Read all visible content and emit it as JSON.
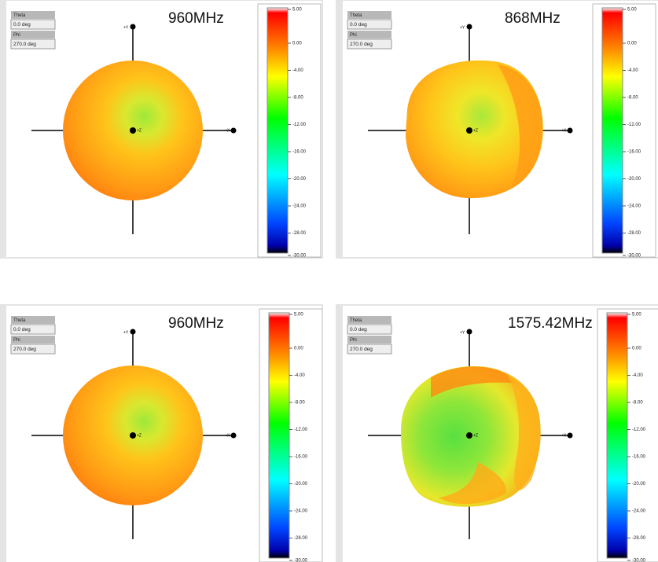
{
  "panels": [
    {
      "frequency": "960MHz",
      "theta_label": "Theta",
      "theta": "0.0 deg",
      "phi_label": "Phi",
      "phi": "270.0 deg",
      "axis_y": "+Y",
      "axis_x": "+X",
      "axis_z": "+Z"
    },
    {
      "frequency": "868MHz",
      "theta_label": "Theta",
      "theta": "0.0 deg",
      "phi_label": "Phi",
      "phi": "270.0 deg",
      "axis_y": "+Y",
      "axis_x": "+X",
      "axis_z": "+Z"
    },
    {
      "frequency": "960MHz",
      "theta_label": "Theta",
      "theta": "0.0 deg",
      "phi_label": "Phi",
      "phi": "270.0 deg",
      "axis_y": "+Y",
      "axis_x": "+X",
      "axis_z": "+Z"
    },
    {
      "frequency": "1575.42MHz",
      "theta_label": "Theta",
      "theta": "0.0 deg",
      "phi_label": "Phi",
      "phi": "270.0 deg",
      "axis_y": "+Y",
      "axis_x": "+X",
      "axis_z": "+Z"
    }
  ],
  "colorbar": {
    "labels": [
      "5.00",
      "0.00",
      "-4.00",
      "-8.00",
      "-12.00",
      "-16.00",
      "-20.00",
      "-24.00",
      "-28.00",
      "-30.00"
    ]
  }
}
